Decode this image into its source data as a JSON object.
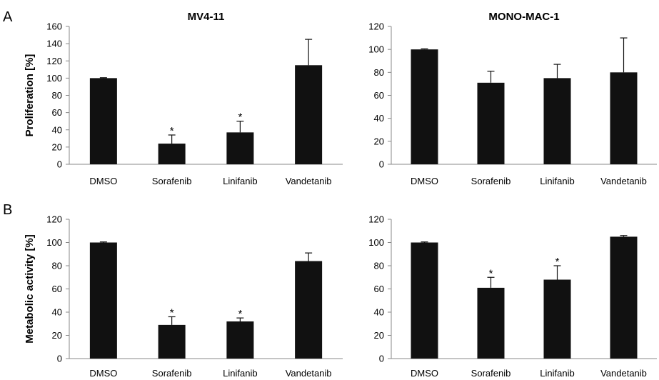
{
  "panel_labels": [
    "A",
    "B"
  ],
  "chart_data": [
    {
      "type": "bar",
      "title": "MV4-11",
      "ylabel": "Proliferation [%]",
      "categories": [
        "DMSO",
        "Sorafenib",
        "Linifanib",
        "Vandetanib"
      ],
      "values": [
        100,
        24,
        37,
        115
      ],
      "error": [
        0.5,
        10,
        13,
        30
      ],
      "significance": [
        "",
        "*",
        "*",
        ""
      ],
      "ylim": [
        0,
        160
      ],
      "yticks": [
        0,
        20,
        40,
        60,
        80,
        100,
        120,
        140,
        160
      ],
      "grid": false,
      "color": "#111111"
    },
    {
      "type": "bar",
      "title": "MONO-MAC-1",
      "ylabel": "",
      "categories": [
        "DMSO",
        "Sorafenib",
        "Linifanib",
        "Vandetanib"
      ],
      "values": [
        100,
        71,
        75,
        80
      ],
      "error": [
        0.5,
        10,
        12,
        30
      ],
      "significance": [
        "",
        "",
        "",
        ""
      ],
      "ylim": [
        0,
        120
      ],
      "yticks": [
        0,
        20,
        40,
        60,
        80,
        100,
        120
      ],
      "grid": false,
      "color": "#111111"
    },
    {
      "type": "bar",
      "title": "",
      "ylabel": "Metabolic activity [%]",
      "categories": [
        "DMSO",
        "Sorafenib",
        "Linifanib",
        "Vandetanib"
      ],
      "values": [
        100,
        29,
        32,
        84
      ],
      "error": [
        0.5,
        7,
        3,
        7
      ],
      "significance": [
        "",
        "*",
        "*",
        ""
      ],
      "ylim": [
        0,
        120
      ],
      "yticks": [
        0,
        20,
        40,
        60,
        80,
        100,
        120
      ],
      "grid": false,
      "color": "#111111"
    },
    {
      "type": "bar",
      "title": "",
      "ylabel": "",
      "categories": [
        "DMSO",
        "Sorafenib",
        "Linifanib",
        "Vandetanib"
      ],
      "values": [
        100,
        61,
        68,
        105
      ],
      "error": [
        0.5,
        9,
        12,
        1
      ],
      "significance": [
        "",
        "*",
        "*",
        ""
      ],
      "ylim": [
        0,
        120
      ],
      "yticks": [
        0,
        20,
        40,
        60,
        80,
        100,
        120
      ],
      "grid": false,
      "color": "#111111"
    }
  ]
}
